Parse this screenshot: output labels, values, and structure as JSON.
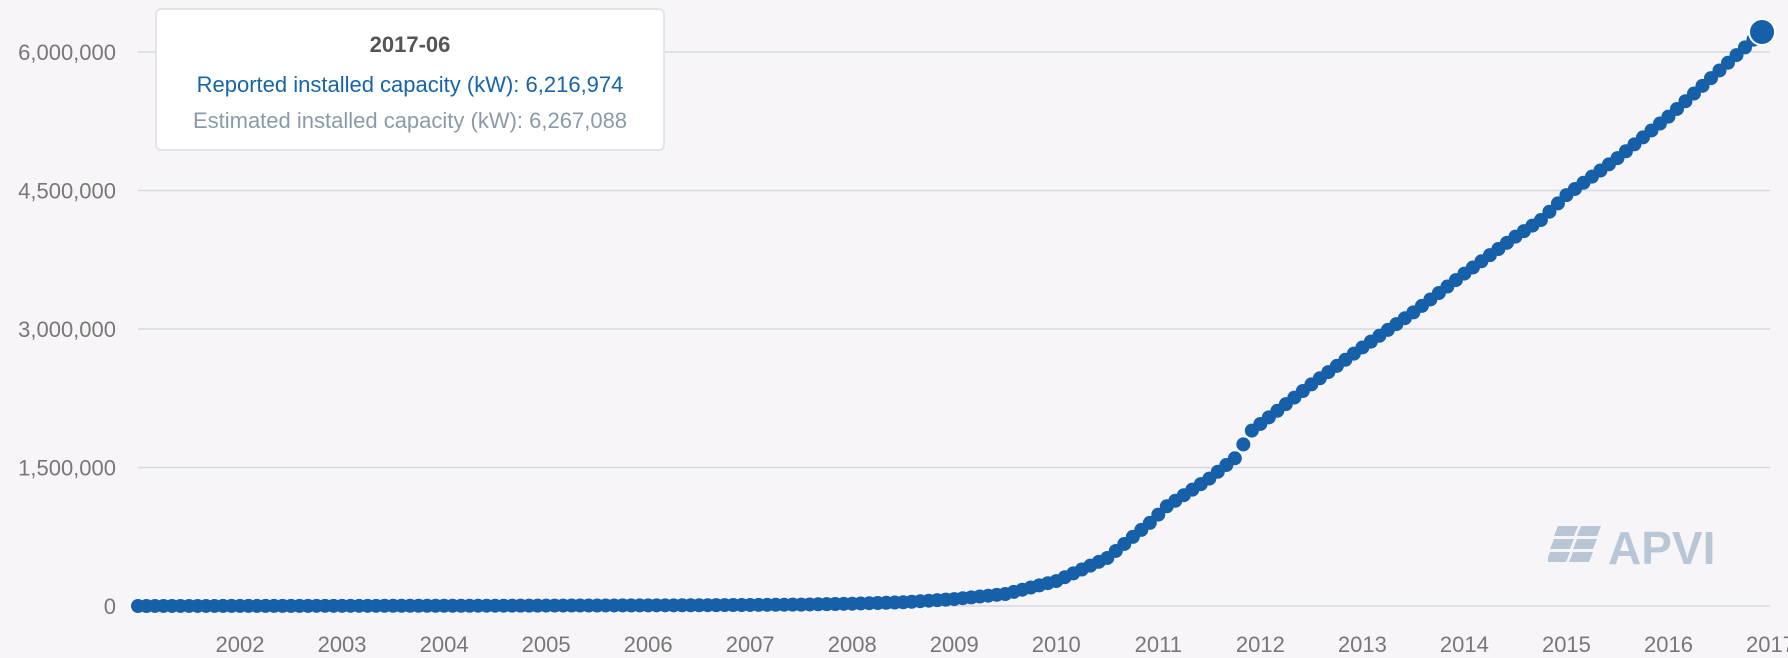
{
  "tooltip": {
    "date": "2017-06",
    "reported_label": "Reported installed capacity (kW): ",
    "reported_value": "6,216,974",
    "estimated_label": "Estimated installed capacity (kW): ",
    "estimated_value": "6,267,088",
    "reported_color": "#1565a8",
    "estimated_color": "#8a9aaa"
  },
  "logo": {
    "text": "APVI",
    "color": "#b9c6d6"
  },
  "colors": {
    "background": "#f8f5f8",
    "grid": "#d5d9e0",
    "tick_text": "#777777",
    "series": "#1560a8"
  },
  "chart_data": {
    "type": "scatter",
    "title": "",
    "xlabel": "",
    "ylabel": "",
    "x_range": [
      "2001-07",
      "2017-06"
    ],
    "ylim": [
      0,
      6000000
    ],
    "yticks": [
      0,
      1500000,
      3000000,
      4500000,
      6000000
    ],
    "ytick_labels": [
      "0",
      "1,500,000",
      "3,000,000",
      "4,500,000",
      "6,000,000"
    ],
    "xtick_labels": [
      "2002",
      "2003",
      "2004",
      "2005",
      "2006",
      "2007",
      "2008",
      "2009",
      "2010",
      "2011",
      "2012",
      "2013",
      "2014",
      "2015",
      "2016",
      "2017"
    ],
    "grid": true,
    "legend": "none",
    "series": [
      {
        "name": "Reported installed capacity (kW)",
        "frequency": "monthly",
        "start": "2001-07",
        "anchors": [
          [
            "2001-07",
            0
          ],
          [
            "2005-01",
            3000
          ],
          [
            "2007-01",
            8000
          ],
          [
            "2008-01",
            15000
          ],
          [
            "2008-07",
            25000
          ],
          [
            "2009-01",
            40000
          ],
          [
            "2009-07",
            75000
          ],
          [
            "2010-01",
            130000
          ],
          [
            "2010-07",
            270000
          ],
          [
            "2011-01",
            520000
          ],
          [
            "2011-06",
            900000
          ],
          [
            "2011-08",
            1080000
          ],
          [
            "2012-01",
            1380000
          ],
          [
            "2012-04",
            1600000
          ],
          [
            "2012-06",
            1900000
          ],
          [
            "2013-01",
            2400000
          ],
          [
            "2013-07",
            2800000
          ],
          [
            "2014-01",
            3180000
          ],
          [
            "2014-07",
            3600000
          ],
          [
            "2015-01",
            4000000
          ],
          [
            "2015-04",
            4180000
          ],
          [
            "2015-07",
            4450000
          ],
          [
            "2016-01",
            4850000
          ],
          [
            "2016-07",
            5300000
          ],
          [
            "2017-01",
            5800000
          ],
          [
            "2017-06",
            6216974
          ]
        ]
      }
    ],
    "highlighted_point": {
      "x": "2017-06",
      "reported": 6216974,
      "estimated": 6267088
    }
  }
}
